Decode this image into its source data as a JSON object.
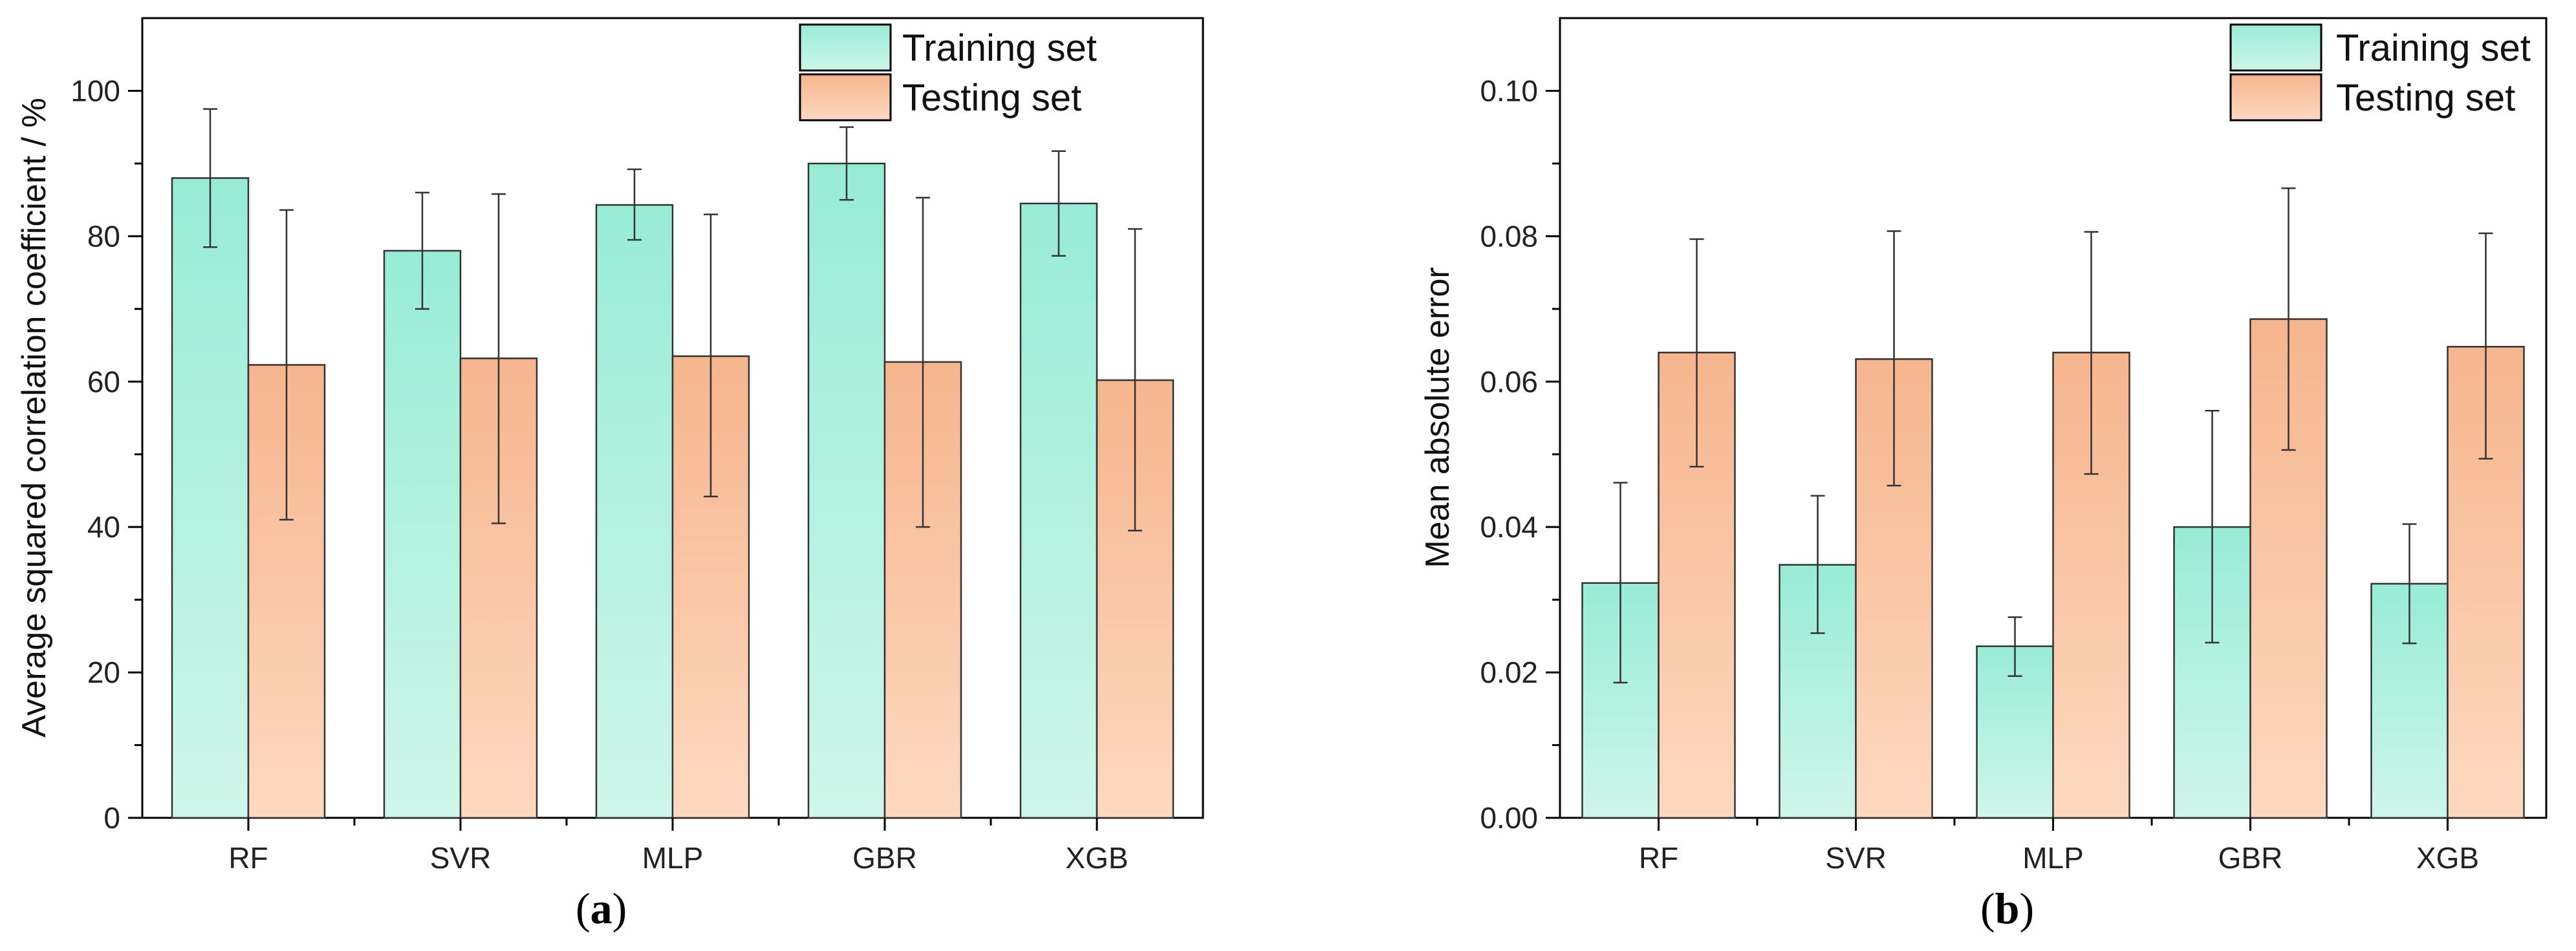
{
  "colors": {
    "training_top": "#98ecd6",
    "training_bottom": "#cff6ea",
    "testing_top": "#f6b58e",
    "testing_bottom": "#fdd9c0",
    "axis": "#000000"
  },
  "chart_data": [
    {
      "type": "bar",
      "panel_label_letter": "a",
      "categories": [
        "RF",
        "SVR",
        "MLP",
        "GBR",
        "XGB"
      ],
      "ylabel": "Average squared correlation coefficient / %",
      "xlabel": "",
      "ylim": [
        0,
        110
      ],
      "yticks": [
        0,
        20,
        40,
        60,
        80,
        100
      ],
      "ytick_labels": [
        "0",
        "20",
        "40",
        "60",
        "80",
        "100"
      ],
      "legend_position": "top-right",
      "series": [
        {
          "name": "Training set",
          "values": [
            88.0,
            78.0,
            84.3,
            90.0,
            84.5
          ],
          "err_low": [
            78.5,
            70.0,
            79.5,
            85.0,
            77.3
          ],
          "err_high": [
            97.5,
            86.0,
            89.2,
            95.0,
            91.7
          ]
        },
        {
          "name": "Testing set",
          "values": [
            62.3,
            63.2,
            63.5,
            62.7,
            60.2
          ],
          "err_low": [
            41.0,
            40.5,
            44.2,
            40.0,
            39.5
          ],
          "err_high": [
            83.6,
            85.8,
            83.0,
            85.3,
            81.0
          ]
        }
      ]
    },
    {
      "type": "bar",
      "panel_label_letter": "b",
      "categories": [
        "RF",
        "SVR",
        "MLP",
        "GBR",
        "XGB"
      ],
      "ylabel": "Mean absolute error",
      "xlabel": "",
      "ylim": [
        0,
        0.11
      ],
      "yticks": [
        0,
        0.02,
        0.04,
        0.06,
        0.08,
        0.1
      ],
      "ytick_labels": [
        "0.00",
        "0.02",
        "0.04",
        "0.06",
        "0.08",
        "0.10"
      ],
      "legend_position": "top-right",
      "series": [
        {
          "name": "Training set",
          "values": [
            0.0323,
            0.0348,
            0.0236,
            0.04,
            0.0322
          ],
          "err_low": [
            0.0186,
            0.0254,
            0.0195,
            0.0241,
            0.024
          ],
          "err_high": [
            0.0461,
            0.0443,
            0.0276,
            0.056,
            0.0404
          ]
        },
        {
          "name": "Testing set",
          "values": [
            0.064,
            0.0631,
            0.064,
            0.0686,
            0.0648
          ],
          "err_low": [
            0.0483,
            0.0457,
            0.0473,
            0.0506,
            0.0494
          ],
          "err_high": [
            0.0796,
            0.0807,
            0.0806,
            0.0866,
            0.0804
          ]
        }
      ]
    }
  ]
}
